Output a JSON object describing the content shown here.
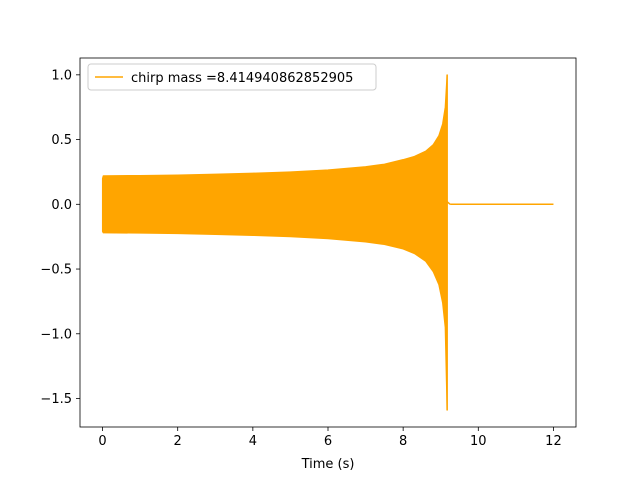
{
  "chart_data": {
    "type": "line",
    "title": "",
    "xlabel": "Time (s)",
    "ylabel": "",
    "xlim": [
      -0.6,
      12.6
    ],
    "ylim": [
      -1.72,
      1.13
    ],
    "x_ticks": [
      0,
      2,
      4,
      6,
      8,
      10,
      12
    ],
    "y_ticks": [
      -1.5,
      -1.0,
      -0.5,
      0.0,
      0.5,
      1.0
    ],
    "x_tick_labels": [
      "0",
      "2",
      "4",
      "6",
      "8",
      "10",
      "12"
    ],
    "y_tick_labels": [
      "−1.5",
      "−1.0",
      "−0.5",
      "0.0",
      "0.5",
      "1.0"
    ],
    "grid": false,
    "legend_position": "upper-left",
    "series": [
      {
        "name": "chirp mass =8.414940862852905",
        "color": "#ffa500",
        "envelope": {
          "x": [
            0,
            0.02,
            1,
            2,
            3,
            4,
            5,
            6,
            7,
            7.5,
            8,
            8.3,
            8.6,
            8.8,
            8.95,
            9.05,
            9.12,
            9.17
          ],
          "upper": [
            0.2,
            0.22,
            0.222,
            0.226,
            0.232,
            0.24,
            0.25,
            0.265,
            0.29,
            0.31,
            0.345,
            0.37,
            0.41,
            0.46,
            0.53,
            0.62,
            0.75,
            1.0
          ],
          "lower": [
            -0.21,
            -0.22,
            -0.222,
            -0.226,
            -0.232,
            -0.24,
            -0.25,
            -0.265,
            -0.29,
            -0.31,
            -0.345,
            -0.38,
            -0.44,
            -0.52,
            -0.62,
            -0.76,
            -0.95,
            -1.59
          ]
        },
        "ringdown_end": 9.25,
        "flat_segment": {
          "x": [
            9.25,
            12.0
          ],
          "y": 0.0
        }
      }
    ]
  }
}
